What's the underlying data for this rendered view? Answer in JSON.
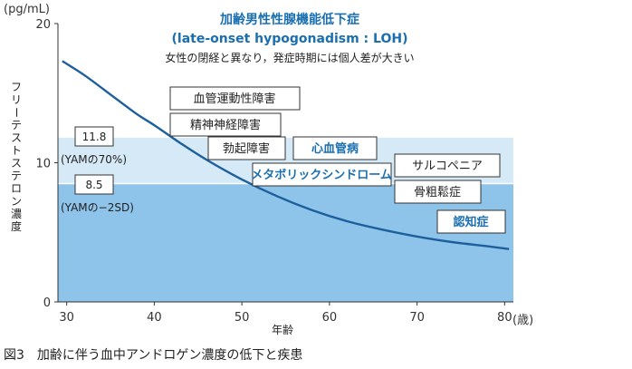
{
  "chart_data": {
    "type": "line",
    "title": "加齢男性性腺機能低下症",
    "subtitle": "(late-onset hypogonadism : LOH)",
    "note": "女性の閉経と異なり，発症時期には個人差が大きい",
    "ylabel": "フリーテストステロン濃度",
    "yunit": "(pg/mL)",
    "xlabel": "年齢",
    "xunit": "(歳)",
    "xlim": [
      29,
      81
    ],
    "ylim": [
      0,
      20
    ],
    "x_ticks": [
      30,
      40,
      50,
      60,
      70,
      80
    ],
    "y_ticks": [
      0,
      10,
      20
    ],
    "series": [
      {
        "x": [
          29.5,
          32,
          35,
          38,
          40,
          43,
          46,
          50,
          54,
          58,
          62,
          66,
          70,
          74,
          78,
          80.5
        ],
        "values": [
          17.3,
          16.3,
          14.9,
          13.5,
          12.7,
          11.4,
          10.2,
          8.8,
          7.6,
          6.6,
          5.8,
          5.2,
          4.7,
          4.3,
          4.0,
          3.8
        ]
      }
    ],
    "bands": [
      {
        "from": 8.5,
        "to": 11.8,
        "color": "#d6e9f7"
      },
      {
        "from": 0,
        "to": 8.5,
        "color": "#8ec3ea"
      }
    ],
    "references": [
      {
        "value_label": "11.8",
        "desc": "(YAMの70%)"
      },
      {
        "value_label": "8.5",
        "desc": "(YAMの−2SD)"
      }
    ],
    "disease_boxes": [
      {
        "label": "血管運動性障害",
        "highlight": false
      },
      {
        "label": "精神神経障害",
        "highlight": false
      },
      {
        "label": "勃起障害",
        "highlight": false
      },
      {
        "label": "心血管病",
        "highlight": true
      },
      {
        "label": "メタボリックシンドローム",
        "highlight": true
      },
      {
        "label": "サルコペニア",
        "highlight": false
      },
      {
        "label": "骨粗鬆症",
        "highlight": false
      },
      {
        "label": "認知症",
        "highlight": true
      }
    ],
    "caption": "図3　加齢に伴う血中アンドロゲン濃度の低下と疾患"
  }
}
